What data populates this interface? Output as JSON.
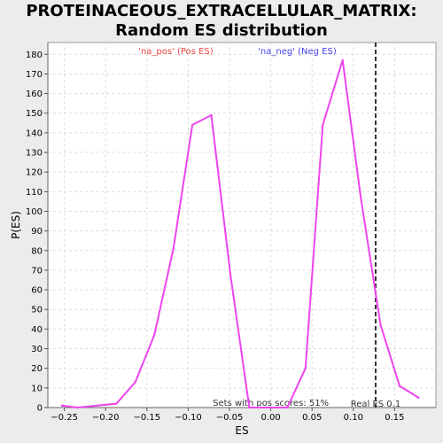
{
  "chart_data": {
    "type": "line",
    "title": "PROTEINACEOUS_EXTRACELLULAR_MATRIX: Random ES distribution",
    "xlabel": "ES",
    "ylabel": "P(ES)",
    "xlim": [
      -0.27,
      0.2
    ],
    "ylim": [
      0,
      186
    ],
    "x_ticks": [
      -0.25,
      -0.2,
      -0.15,
      -0.1,
      -0.05,
      0.0,
      0.05,
      0.1,
      0.15
    ],
    "x_tick_labels": [
      "−0.25",
      "−0.20",
      "−0.15",
      "−0.10",
      "−0.05",
      "0.00",
      "0.05",
      "0.10",
      "0.15"
    ],
    "y_ticks": [
      0,
      10,
      20,
      30,
      40,
      50,
      60,
      70,
      80,
      90,
      100,
      110,
      120,
      130,
      140,
      150,
      160,
      170,
      180
    ],
    "grid": true,
    "series": [
      {
        "color": "#ee44ee",
        "x": [
          -0.253,
          -0.234,
          -0.21,
          -0.187,
          -0.164,
          -0.141,
          -0.118,
          -0.095,
          -0.072,
          -0.049,
          -0.026,
          -0.003,
          0.02,
          0.042,
          0.063,
          0.087,
          0.109,
          0.133,
          0.156,
          0.179
        ],
        "y": [
          1,
          0,
          1,
          2,
          13,
          37,
          81,
          144,
          149,
          68,
          0,
          0,
          0,
          20,
          144,
          177,
          107,
          42,
          11,
          5
        ]
      }
    ],
    "annotations": {
      "pos_label": "'na_pos' (Pos ES)",
      "pos_color": "#ee4444",
      "neg_label": "'na_neg' (Neg ES)",
      "neg_color": "#4444ee",
      "sets_text": "Sets with pos scores: 51%",
      "real_es_label": "Real ES 0.1",
      "real_es_value": 0.127
    }
  }
}
